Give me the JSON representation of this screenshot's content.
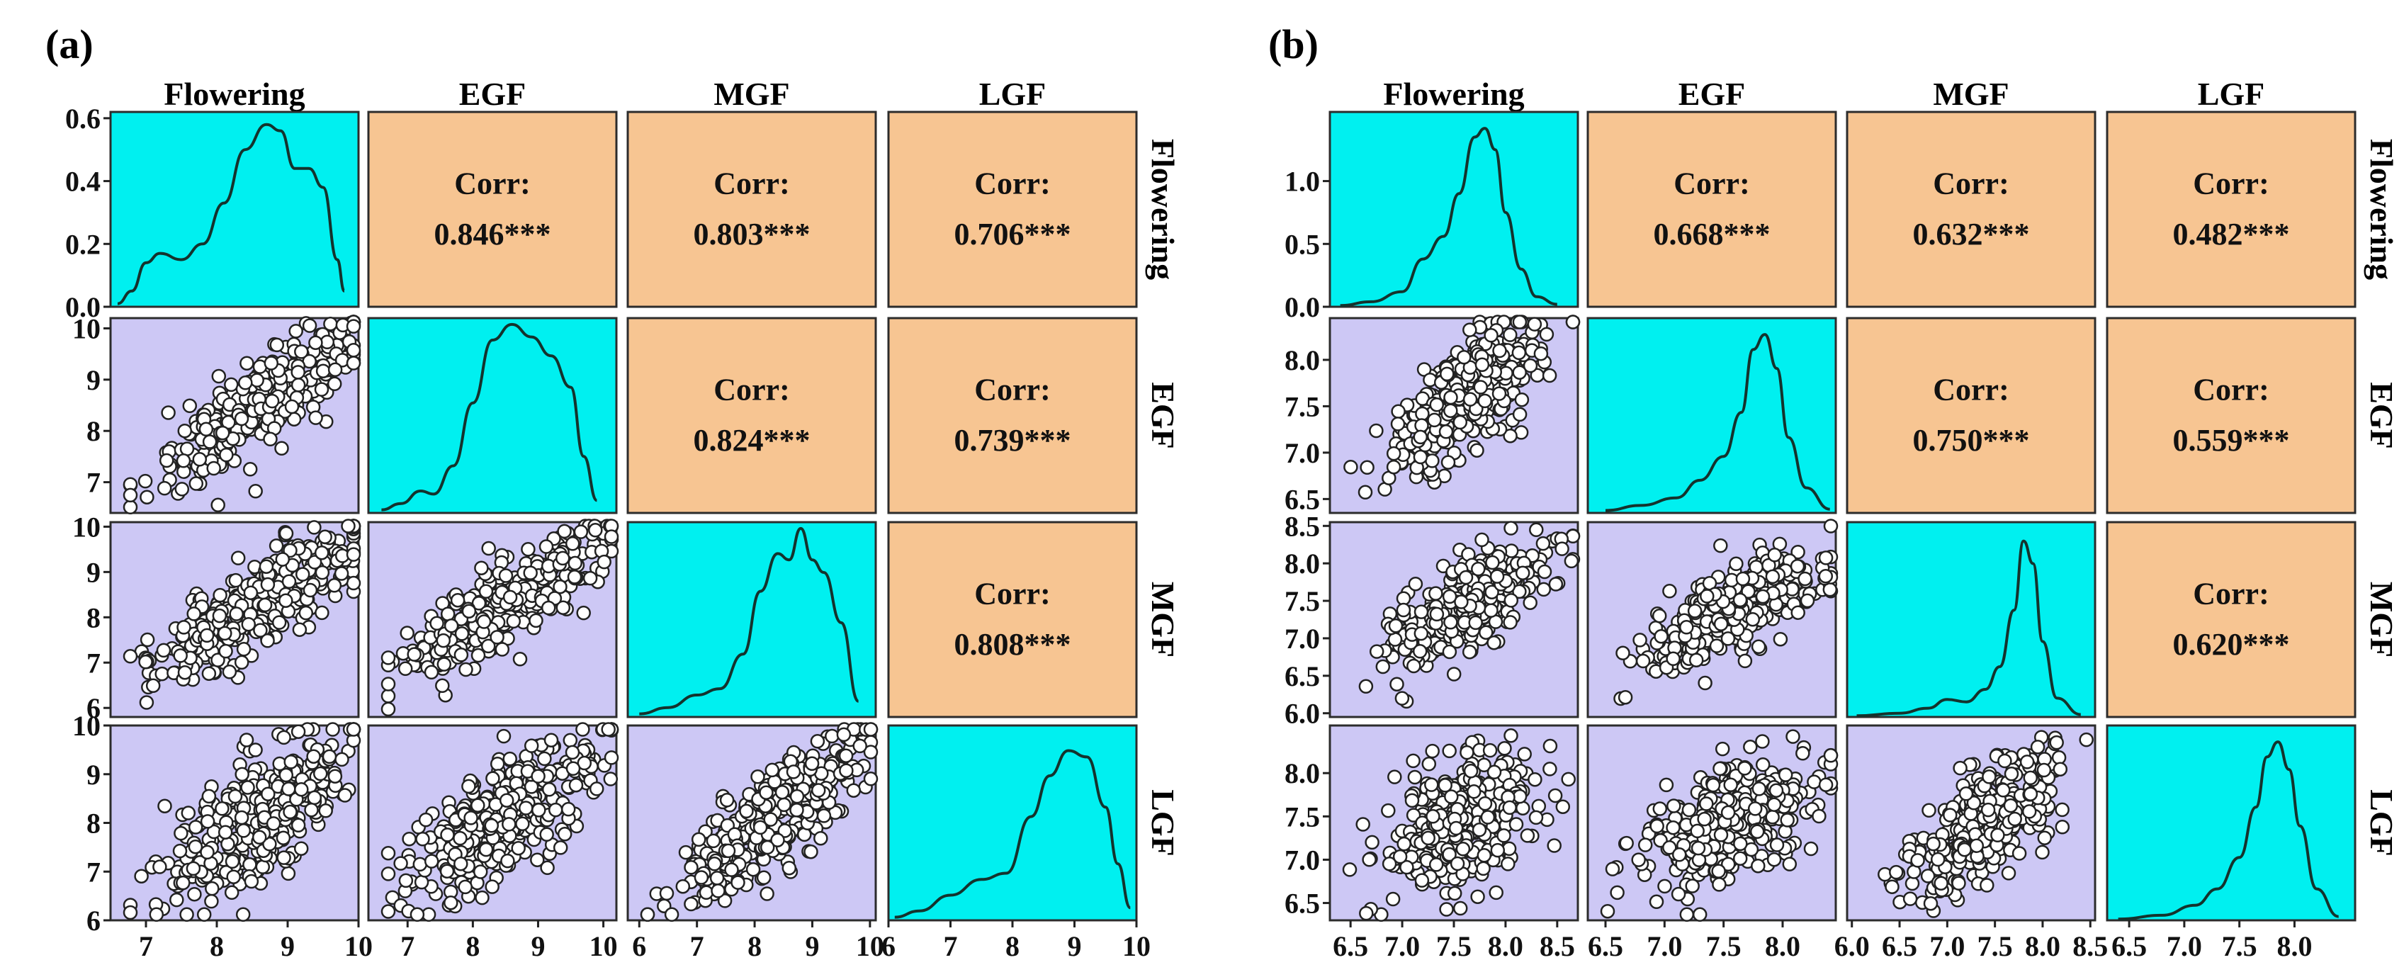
{
  "colors": {
    "density_bg": "#00f0f0",
    "scatter_bg": "#cdc8f5",
    "corr_bg": "#f7c592",
    "cell_border": "#2c2c2c",
    "line": "#14332d",
    "point_fill": "#ffffff",
    "point_stroke": "#222222"
  },
  "chart_data": [
    {
      "type": "scatter",
      "subtype": "pairs-plot",
      "panel_label": "(a)",
      "variables": [
        "Flowering",
        "EGF",
        "MGF",
        "LGF"
      ],
      "axis_ranges": [
        [
          6.5,
          10
        ],
        [
          6.4,
          10.2
        ],
        [
          5.8,
          10.1
        ],
        [
          6.0,
          10.0
        ]
      ],
      "x_ticks": [
        [
          7,
          8,
          9,
          10
        ],
        [
          7,
          8,
          9,
          10
        ],
        [
          6,
          7,
          8,
          9,
          10
        ],
        [
          6,
          7,
          8,
          9,
          10
        ]
      ],
      "x_tick_labels": [
        [
          "7",
          "8",
          "9",
          "10"
        ],
        [
          "7",
          "8",
          "9",
          "10"
        ],
        [
          "6",
          "7",
          "8",
          "9",
          "10"
        ],
        [
          "6",
          "7",
          "8",
          "9",
          "10"
        ]
      ],
      "y_ticks": [
        [
          0.0,
          0.2,
          0.4,
          0.6
        ],
        [
          7,
          8,
          9,
          10
        ],
        [
          6,
          7,
          8,
          9,
          10
        ],
        [
          6,
          7,
          8,
          9,
          10
        ]
      ],
      "y_tick_labels": [
        [
          "0.0",
          "0.2",
          "0.4",
          "0.6"
        ],
        [
          "7",
          "8",
          "9",
          "10"
        ],
        [
          "6",
          "7",
          "8",
          "9",
          "10"
        ],
        [
          "6",
          "7",
          "8",
          "9",
          "10"
        ]
      ],
      "density_ylim": [
        0,
        0.62
      ],
      "density_curves": [
        {
          "x": [
            6.6,
            6.8,
            7.0,
            7.2,
            7.5,
            7.8,
            8.1,
            8.4,
            8.7,
            8.9,
            9.1,
            9.3,
            9.5,
            9.7,
            9.8
          ],
          "y": [
            0.01,
            0.05,
            0.14,
            0.17,
            0.15,
            0.2,
            0.33,
            0.5,
            0.58,
            0.56,
            0.44,
            0.44,
            0.38,
            0.15,
            0.05
          ]
        },
        {
          "x": [
            6.6,
            6.9,
            7.2,
            7.4,
            7.7,
            8.0,
            8.3,
            8.6,
            8.9,
            9.2,
            9.5,
            9.7,
            9.9
          ],
          "y": [
            0.01,
            0.03,
            0.07,
            0.06,
            0.15,
            0.35,
            0.55,
            0.6,
            0.56,
            0.5,
            0.4,
            0.18,
            0.04
          ]
        },
        {
          "x": [
            6.0,
            6.5,
            7.0,
            7.4,
            7.8,
            8.1,
            8.4,
            8.6,
            8.8,
            9.0,
            9.2,
            9.5,
            9.8
          ],
          "y": [
            0.01,
            0.03,
            0.07,
            0.09,
            0.2,
            0.4,
            0.52,
            0.5,
            0.6,
            0.5,
            0.46,
            0.3,
            0.05
          ]
        },
        {
          "x": [
            6.1,
            6.5,
            7.0,
            7.5,
            7.9,
            8.3,
            8.6,
            8.9,
            9.2,
            9.5,
            9.7,
            9.9
          ],
          "y": [
            0.01,
            0.03,
            0.08,
            0.13,
            0.15,
            0.33,
            0.46,
            0.54,
            0.52,
            0.36,
            0.18,
            0.04
          ]
        }
      ],
      "correlations": [
        {
          "row": 0,
          "col": 1,
          "label": "Corr:",
          "value": "0.846***"
        },
        {
          "row": 0,
          "col": 2,
          "label": "Corr:",
          "value": "0.803***"
        },
        {
          "row": 0,
          "col": 3,
          "label": "Corr:",
          "value": "0.706***"
        },
        {
          "row": 1,
          "col": 2,
          "label": "Corr:",
          "value": "0.824***"
        },
        {
          "row": 1,
          "col": 3,
          "label": "Corr:",
          "value": "0.739***"
        },
        {
          "row": 2,
          "col": 3,
          "label": "Corr:",
          "value": "0.808***"
        }
      ],
      "scatter_correlation": [
        [
          null,
          null,
          null,
          null
        ],
        [
          0.846,
          null,
          null,
          null
        ],
        [
          0.803,
          0.824,
          null,
          null
        ],
        [
          0.706,
          0.739,
          0.808,
          null
        ]
      ],
      "scatter_points_per_panel": 380,
      "means": [
        8.6,
        8.5,
        8.3,
        8.1
      ],
      "sds": [
        0.7,
        0.75,
        0.8,
        0.85
      ]
    },
    {
      "type": "scatter",
      "subtype": "pairs-plot",
      "panel_label": "(b)",
      "variables": [
        "Flowering",
        "EGF",
        "MGF",
        "LGF"
      ],
      "axis_ranges": [
        [
          6.3,
          8.7
        ],
        [
          6.35,
          8.45
        ],
        [
          5.95,
          8.55
        ],
        [
          6.3,
          8.55
        ]
      ],
      "x_ticks": [
        [
          6.5,
          7.0,
          7.5,
          8.0,
          8.5
        ],
        [
          6.5,
          7.0,
          7.5,
          8.0
        ],
        [
          6.0,
          6.5,
          7.0,
          7.5,
          8.0,
          8.5
        ],
        [
          6.5,
          7.0,
          7.5,
          8.0
        ]
      ],
      "x_tick_labels": [
        [
          "6.5",
          "7.0",
          "7.5",
          "8.0",
          "8.5"
        ],
        [
          "6.5",
          "7.0",
          "7.5",
          "8.0"
        ],
        [
          "6.0",
          "6.5",
          "7.0",
          "7.5",
          "8.0",
          "8.5"
        ],
        [
          "6.5",
          "7.0",
          "7.5",
          "8.0"
        ]
      ],
      "y_ticks": [
        [
          0.0,
          0.5,
          1.0
        ],
        [
          6.5,
          7.0,
          7.5,
          8.0
        ],
        [
          6.0,
          6.5,
          7.0,
          7.5,
          8.0,
          8.5
        ],
        [
          6.5,
          7.0,
          7.5,
          8.0
        ]
      ],
      "y_tick_labels": [
        [
          "0.0",
          "0.5",
          "1.0"
        ],
        [
          "6.5",
          "7.0",
          "7.5",
          "8.0"
        ],
        [
          "6.0",
          "6.5",
          "7.0",
          "7.5",
          "8.0",
          "8.5"
        ],
        [
          "6.5",
          "7.0",
          "7.5",
          "8.0"
        ]
      ],
      "density_ylim": [
        0,
        1.55
      ],
      "density_curves": [
        {
          "x": [
            6.4,
            6.7,
            7.0,
            7.2,
            7.4,
            7.55,
            7.7,
            7.8,
            7.9,
            8.0,
            8.15,
            8.3,
            8.5
          ],
          "y": [
            0.01,
            0.04,
            0.12,
            0.38,
            0.56,
            0.9,
            1.35,
            1.42,
            1.25,
            0.75,
            0.3,
            0.08,
            0.02
          ]
        },
        {
          "x": [
            6.5,
            6.8,
            7.1,
            7.3,
            7.5,
            7.65,
            7.75,
            7.85,
            7.95,
            8.05,
            8.2,
            8.4
          ],
          "y": [
            0.02,
            0.06,
            0.12,
            0.26,
            0.45,
            0.8,
            1.3,
            1.42,
            1.15,
            0.6,
            0.2,
            0.03
          ]
        },
        {
          "x": [
            6.05,
            6.5,
            6.8,
            7.0,
            7.2,
            7.4,
            7.55,
            7.7,
            7.8,
            7.9,
            8.0,
            8.15,
            8.4
          ],
          "y": [
            0.01,
            0.03,
            0.07,
            0.14,
            0.12,
            0.22,
            0.4,
            0.85,
            1.4,
            1.22,
            0.6,
            0.15,
            0.02
          ]
        },
        {
          "x": [
            6.4,
            6.8,
            7.1,
            7.3,
            7.5,
            7.65,
            7.75,
            7.85,
            7.95,
            8.05,
            8.2,
            8.4
          ],
          "y": [
            0.01,
            0.04,
            0.12,
            0.25,
            0.5,
            0.9,
            1.3,
            1.42,
            1.2,
            0.75,
            0.25,
            0.03
          ]
        }
      ],
      "correlations": [
        {
          "row": 0,
          "col": 1,
          "label": "Corr:",
          "value": "0.668***"
        },
        {
          "row": 0,
          "col": 2,
          "label": "Corr:",
          "value": "0.632***"
        },
        {
          "row": 0,
          "col": 3,
          "label": "Corr:",
          "value": "0.482***"
        },
        {
          "row": 1,
          "col": 2,
          "label": "Corr:",
          "value": "0.750***"
        },
        {
          "row": 1,
          "col": 3,
          "label": "Corr:",
          "value": "0.559***"
        },
        {
          "row": 2,
          "col": 3,
          "label": "Corr:",
          "value": "0.620***"
        }
      ],
      "scatter_correlation": [
        [
          null,
          null,
          null,
          null
        ],
        [
          0.668,
          null,
          null,
          null
        ],
        [
          0.632,
          0.75,
          null,
          null
        ],
        [
          0.482,
          0.559,
          0.62,
          null
        ]
      ],
      "scatter_points_per_panel": 380,
      "means": [
        7.6,
        7.6,
        7.4,
        7.45
      ],
      "sds": [
        0.35,
        0.38,
        0.4,
        0.38
      ]
    }
  ]
}
